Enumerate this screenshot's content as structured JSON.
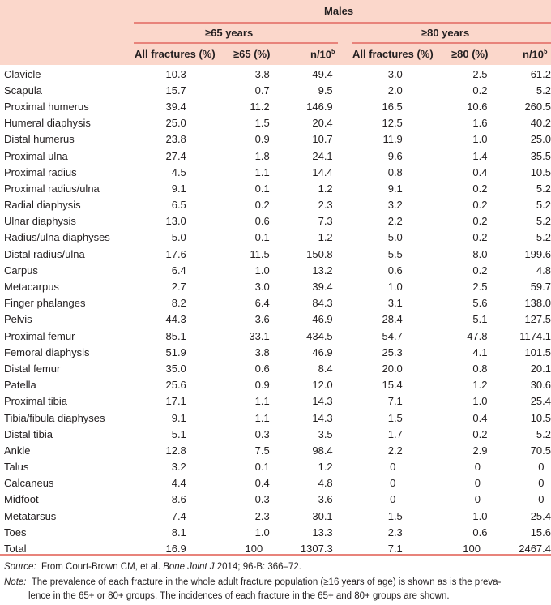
{
  "header": {
    "group": "Males",
    "subgroups": [
      "≥65 years",
      "≥80 years"
    ],
    "columns": [
      "All fractures (%)",
      "≥65 (%)",
      "n/10",
      "All fractures (%)",
      "≥80 (%)",
      "n/10"
    ],
    "superscript": "5"
  },
  "rows": [
    {
      "label": "Clavicle",
      "v": [
        "10.3",
        "3.8",
        "49.4",
        "3.0",
        "2.5",
        "61.2"
      ]
    },
    {
      "label": "Scapula",
      "v": [
        "15.7",
        "0.7",
        "9.5",
        "2.0",
        "0.2",
        "5.2"
      ]
    },
    {
      "label": "Proximal humerus",
      "v": [
        "39.4",
        "11.2",
        "146.9",
        "16.5",
        "10.6",
        "260.5"
      ]
    },
    {
      "label": "Humeral diaphysis",
      "v": [
        "25.0",
        "1.5",
        "20.4",
        "12.5",
        "1.6",
        "40.2"
      ]
    },
    {
      "label": "Distal humerus",
      "v": [
        "23.8",
        "0.9",
        "10.7",
        "11.9",
        "1.0",
        "25.0"
      ]
    },
    {
      "label": "Proximal ulna",
      "v": [
        "27.4",
        "1.8",
        "24.1",
        "9.6",
        "1.4",
        "35.5"
      ]
    },
    {
      "label": "Proximal radius",
      "v": [
        "4.5",
        "1.1",
        "14.4",
        "0.8",
        "0.4",
        "10.5"
      ]
    },
    {
      "label": "Proximal radius/ulna",
      "v": [
        "9.1",
        "0.1",
        "1.2",
        "9.1",
        "0.2",
        "5.2"
      ]
    },
    {
      "label": "Radial diaphysis",
      "v": [
        "6.5",
        "0.2",
        "2.3",
        "3.2",
        "0.2",
        "5.2"
      ]
    },
    {
      "label": "Ulnar diaphysis",
      "v": [
        "13.0",
        "0.6",
        "7.3",
        "2.2",
        "0.2",
        "5.2"
      ]
    },
    {
      "label": "Radius/ulna diaphyses",
      "v": [
        "5.0",
        "0.1",
        "1.2",
        "5.0",
        "0.2",
        "5.2"
      ]
    },
    {
      "label": "Distal radius/ulna",
      "v": [
        "17.6",
        "11.5",
        "150.8",
        "5.5",
        "8.0",
        "199.6"
      ]
    },
    {
      "label": "Carpus",
      "v": [
        "6.4",
        "1.0",
        "13.2",
        "0.6",
        "0.2",
        "4.8"
      ]
    },
    {
      "label": "Metacarpus",
      "v": [
        "2.7",
        "3.0",
        "39.4",
        "1.0",
        "2.5",
        "59.7"
      ]
    },
    {
      "label": "Finger phalanges",
      "v": [
        "8.2",
        "6.4",
        "84.3",
        "3.1",
        "5.6",
        "138.0"
      ]
    },
    {
      "label": "Pelvis",
      "v": [
        "44.3",
        "3.6",
        "46.9",
        "28.4",
        "5.1",
        "127.5"
      ]
    },
    {
      "label": "Proximal femur",
      "v": [
        "85.1",
        "33.1",
        "434.5",
        "54.7",
        "47.8",
        "1174.1"
      ]
    },
    {
      "label": "Femoral diaphysis",
      "v": [
        "51.9",
        "3.8",
        "46.9",
        "25.3",
        "4.1",
        "101.5"
      ]
    },
    {
      "label": "Distal femur",
      "v": [
        "35.0",
        "0.6",
        "8.4",
        "20.0",
        "0.8",
        "20.1"
      ]
    },
    {
      "label": "Patella",
      "v": [
        "25.6",
        "0.9",
        "12.0",
        "15.4",
        "1.2",
        "30.6"
      ]
    },
    {
      "label": "Proximal tibia",
      "v": [
        "17.1",
        "1.1",
        "14.3",
        "7.1",
        "1.0",
        "25.4"
      ]
    },
    {
      "label": "Tibia/fibula diaphyses",
      "v": [
        "9.1",
        "1.1",
        "14.3",
        "1.5",
        "0.4",
        "10.5"
      ]
    },
    {
      "label": "Distal tibia",
      "v": [
        "5.1",
        "0.3",
        "3.5",
        "1.7",
        "0.2",
        "5.2"
      ]
    },
    {
      "label": "Ankle",
      "v": [
        "12.8",
        "7.5",
        "98.4",
        "2.2",
        "2.9",
        "70.5"
      ]
    },
    {
      "label": "Talus",
      "v": [
        "3.2",
        "0.1",
        "1.2",
        "0",
        "0",
        "0"
      ]
    },
    {
      "label": "Calcaneus",
      "v": [
        "4.4",
        "0.4",
        "4.8",
        "0",
        "0",
        "0"
      ]
    },
    {
      "label": "Midfoot",
      "v": [
        "8.6",
        "0.3",
        "3.6",
        "0",
        "0",
        "0"
      ]
    },
    {
      "label": "Metatarsus",
      "v": [
        "7.4",
        "2.3",
        "30.1",
        "1.5",
        "1.0",
        "25.4"
      ]
    },
    {
      "label": "Toes",
      "v": [
        "8.1",
        "1.0",
        "13.3",
        "2.3",
        "0.6",
        "15.6"
      ]
    },
    {
      "label": "Total",
      "v": [
        "16.9",
        "100",
        "1307.3",
        "7.1",
        "100",
        "2467.4"
      ]
    }
  ],
  "footer": {
    "source_label": "Source:",
    "source_text": "From Court-Brown CM, et al.",
    "source_journal": "Bone Joint J",
    "source_rest": "2014; 96-B: 366–72.",
    "note_label": "Note:",
    "note_line1": "The prevalence of each fracture in the whole adult fracture population (≥16 years of age) is shown as is the preva-",
    "note_line2": "lence in the 65+ or 80+ groups. The incidences of each fracture in the 65+ and 80+ groups are shown."
  },
  "colors": {
    "header_bg": "#fbd7cb",
    "rule": "#e8837b"
  }
}
